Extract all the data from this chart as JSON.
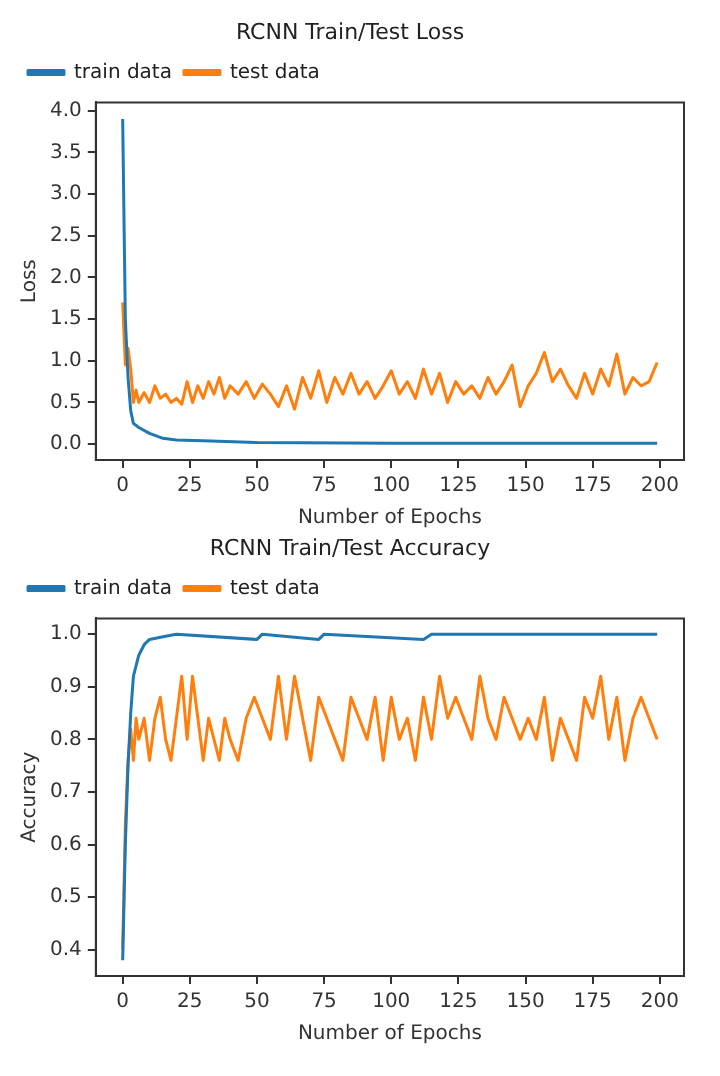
{
  "chart_data": [
    {
      "type": "line",
      "title": "RCNN Train/Test Loss",
      "xlabel": "Number of Epochs",
      "ylabel": "Loss",
      "xlim": [
        -10,
        209
      ],
      "xticks": [
        0,
        25,
        50,
        75,
        100,
        125,
        150,
        175,
        200
      ],
      "ylim": [
        -0.19,
        4.1
      ],
      "yticks": [
        {
          "value": 0,
          "label": "0.0"
        },
        {
          "value": 0.5,
          "label": "0.5"
        },
        {
          "value": 1,
          "label": "1.0"
        },
        {
          "value": 1.5,
          "label": "1.5"
        },
        {
          "value": 2,
          "label": "2.0"
        },
        {
          "value": 2.5,
          "label": "2.5"
        },
        {
          "value": 3,
          "label": "3.0"
        },
        {
          "value": 3.5,
          "label": "3.5"
        },
        {
          "value": 4,
          "label": "4.0"
        }
      ],
      "grid": false,
      "legend": "top left",
      "marker": "none",
      "line_style": "solid",
      "series": [
        {
          "name": "train data",
          "color": "#1f77b4",
          "x": [
            0,
            1,
            2,
            3,
            4,
            6,
            10,
            15,
            20,
            30,
            50,
            100,
            150,
            199
          ],
          "values": [
            3.9,
            1.5,
            0.8,
            0.4,
            0.25,
            0.2,
            0.13,
            0.07,
            0.05,
            0.04,
            0.02,
            0.01,
            0.01,
            0.01
          ]
        },
        {
          "name": "test data",
          "color": "#ff7f0e",
          "x": [
            0,
            1,
            2,
            3,
            4,
            5,
            6,
            8,
            10,
            12,
            14,
            16,
            18,
            20,
            22,
            24,
            26,
            28,
            30,
            32,
            34,
            36,
            38,
            40,
            43,
            46,
            49,
            52,
            55,
            58,
            61,
            64,
            67,
            70,
            73,
            76,
            79,
            82,
            85,
            88,
            91,
            94,
            97,
            100,
            103,
            106,
            109,
            112,
            115,
            118,
            121,
            124,
            127,
            130,
            133,
            136,
            139,
            142,
            145,
            148,
            151,
            154,
            157,
            160,
            163,
            166,
            169,
            172,
            175,
            178,
            181,
            184,
            187,
            190,
            193,
            196,
            199
          ],
          "values": [
            1.7,
            0.95,
            1.15,
            0.9,
            0.5,
            0.65,
            0.5,
            0.62,
            0.5,
            0.7,
            0.55,
            0.6,
            0.5,
            0.55,
            0.48,
            0.75,
            0.5,
            0.7,
            0.55,
            0.75,
            0.6,
            0.8,
            0.55,
            0.7,
            0.6,
            0.75,
            0.55,
            0.72,
            0.6,
            0.45,
            0.7,
            0.42,
            0.8,
            0.55,
            0.88,
            0.5,
            0.8,
            0.6,
            0.85,
            0.6,
            0.75,
            0.55,
            0.7,
            0.88,
            0.6,
            0.75,
            0.55,
            0.9,
            0.6,
            0.85,
            0.5,
            0.75,
            0.6,
            0.7,
            0.55,
            0.8,
            0.6,
            0.75,
            0.95,
            0.45,
            0.7,
            0.85,
            1.1,
            0.75,
            0.9,
            0.7,
            0.55,
            0.85,
            0.6,
            0.9,
            0.7,
            1.08,
            0.6,
            0.8,
            0.7,
            0.75,
            0.98
          ]
        }
      ]
    },
    {
      "type": "line",
      "title": "RCNN Train/Test Accuracy",
      "xlabel": "Number of Epochs",
      "ylabel": "Accuracy",
      "xlim": [
        -10,
        209
      ],
      "xticks": [
        0,
        25,
        50,
        75,
        100,
        125,
        150,
        175,
        200
      ],
      "ylim": [
        0.35,
        1.03
      ],
      "yticks": [
        {
          "value": 0.4,
          "label": "0.4"
        },
        {
          "value": 0.5,
          "label": "0.5"
        },
        {
          "value": 0.6,
          "label": "0.6"
        },
        {
          "value": 0.7,
          "label": "0.7"
        },
        {
          "value": 0.8,
          "label": "0.8"
        },
        {
          "value": 0.9,
          "label": "0.9"
        },
        {
          "value": 1,
          "label": "1.0"
        }
      ],
      "grid": false,
      "legend": "top left",
      "marker": "none",
      "line_style": "solid",
      "series": [
        {
          "name": "train data",
          "color": "#1f77b4",
          "x": [
            0,
            1,
            2,
            3,
            4,
            6,
            8,
            10,
            15,
            20,
            50,
            52,
            73,
            75,
            112,
            115,
            199
          ],
          "values": [
            0.38,
            0.6,
            0.75,
            0.85,
            0.92,
            0.96,
            0.98,
            0.99,
            0.995,
            1.0,
            0.99,
            1.0,
            0.99,
            1.0,
            0.99,
            1.0,
            1.0
          ]
        },
        {
          "name": "test data",
          "color": "#ff7f0e",
          "x": [
            0,
            1,
            2,
            3,
            4,
            5,
            6,
            8,
            10,
            12,
            14,
            16,
            18,
            20,
            22,
            24,
            26,
            28,
            30,
            32,
            34,
            36,
            38,
            40,
            43,
            46,
            49,
            52,
            55,
            58,
            61,
            64,
            67,
            70,
            73,
            76,
            79,
            82,
            85,
            88,
            91,
            94,
            97,
            100,
            103,
            106,
            109,
            112,
            115,
            118,
            121,
            124,
            127,
            130,
            133,
            136,
            139,
            142,
            145,
            148,
            151,
            154,
            157,
            160,
            163,
            166,
            169,
            172,
            175,
            178,
            181,
            184,
            187,
            190,
            193,
            196,
            199
          ],
          "values": [
            0.4,
            0.64,
            0.76,
            0.82,
            0.76,
            0.84,
            0.8,
            0.84,
            0.76,
            0.84,
            0.88,
            0.8,
            0.76,
            0.84,
            0.92,
            0.8,
            0.92,
            0.84,
            0.76,
            0.84,
            0.8,
            0.76,
            0.84,
            0.8,
            0.76,
            0.84,
            0.88,
            0.84,
            0.8,
            0.92,
            0.8,
            0.92,
            0.84,
            0.76,
            0.88,
            0.84,
            0.8,
            0.76,
            0.88,
            0.84,
            0.8,
            0.88,
            0.76,
            0.88,
            0.8,
            0.84,
            0.76,
            0.88,
            0.8,
            0.92,
            0.84,
            0.88,
            0.84,
            0.8,
            0.92,
            0.84,
            0.8,
            0.88,
            0.84,
            0.8,
            0.84,
            0.8,
            0.88,
            0.76,
            0.84,
            0.8,
            0.76,
            0.88,
            0.84,
            0.92,
            0.8,
            0.88,
            0.76,
            0.84,
            0.88,
            0.84,
            0.8
          ]
        }
      ]
    }
  ]
}
